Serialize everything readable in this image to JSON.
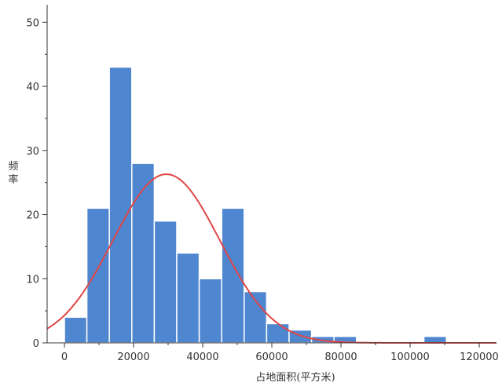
{
  "chart_data": {
    "type": "bar",
    "subtype": "histogram",
    "xlabel": "占地面积(平方米)",
    "ylabel": "频率",
    "ylim": [
      0,
      52
    ],
    "xlim": [
      -5000,
      125000
    ],
    "yticks": [
      0,
      10,
      20,
      30,
      40,
      50
    ],
    "xticks": [
      0,
      20000,
      40000,
      60000,
      80000,
      100000,
      120000
    ],
    "grid": false,
    "bin_width": 6500,
    "bins": [
      {
        "start": 0,
        "end": 6500,
        "value": 4
      },
      {
        "start": 6500,
        "end": 13000,
        "value": 21
      },
      {
        "start": 13000,
        "end": 19500,
        "value": 43
      },
      {
        "start": 19500,
        "end": 26000,
        "value": 28
      },
      {
        "start": 26000,
        "end": 32500,
        "value": 19
      },
      {
        "start": 32500,
        "end": 39000,
        "value": 14
      },
      {
        "start": 39000,
        "end": 45500,
        "value": 10
      },
      {
        "start": 45500,
        "end": 52000,
        "value": 21
      },
      {
        "start": 52000,
        "end": 58500,
        "value": 8
      },
      {
        "start": 58500,
        "end": 65000,
        "value": 3
      },
      {
        "start": 65000,
        "end": 71500,
        "value": 2
      },
      {
        "start": 71500,
        "end": 78000,
        "value": 1
      },
      {
        "start": 78000,
        "end": 84500,
        "value": 1
      },
      {
        "start": 104000,
        "end": 110500,
        "value": 1
      }
    ],
    "normal_curve": {
      "mean": 29500,
      "std": 15500,
      "peak": 26.3
    },
    "colors": {
      "bars": "#4f86d0",
      "curve": "#e04646",
      "axis": "#333333"
    }
  }
}
